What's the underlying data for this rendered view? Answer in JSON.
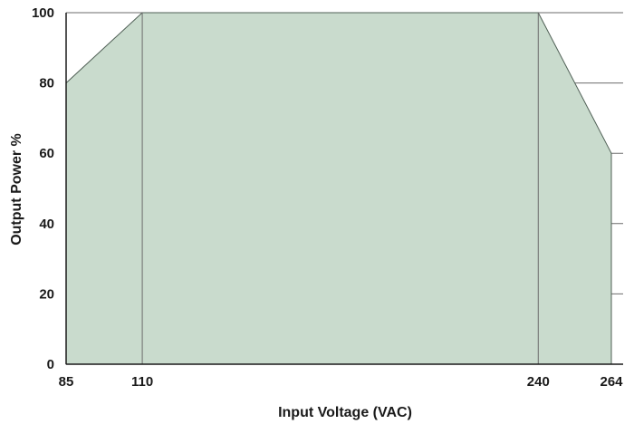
{
  "chart_data": {
    "type": "area",
    "title": "",
    "xlabel": "Input Voltage (VAC)",
    "ylabel": "Output Power %",
    "x_ticks": [
      85,
      110,
      240,
      264
    ],
    "y_ticks": [
      0,
      20,
      40,
      60,
      80,
      100
    ],
    "xlim": [
      85,
      264
    ],
    "ylim": [
      0,
      100
    ],
    "grid": true,
    "series": [
      {
        "x": [
          85,
          110,
          240,
          264
        ],
        "y": [
          80,
          100,
          100,
          60
        ]
      }
    ],
    "colors": {
      "fill": "#c9dbcd",
      "outline": "#4f5f55",
      "grid": "#6b6b6b"
    }
  }
}
